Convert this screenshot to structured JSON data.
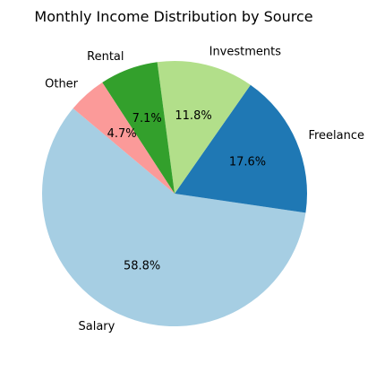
{
  "chart_data": {
    "type": "pie",
    "title": "Monthly Income Distribution by Source",
    "slices": [
      {
        "label": "Salary",
        "value": 58.8,
        "pct_label": "58.8%",
        "color": "#a6cee3"
      },
      {
        "label": "Freelance",
        "value": 17.6,
        "pct_label": "17.6%",
        "color": "#1f78b4"
      },
      {
        "label": "Investments",
        "value": 11.8,
        "pct_label": "11.8%",
        "color": "#b2df8a"
      },
      {
        "label": "Rental",
        "value": 7.1,
        "pct_label": "7.1%",
        "color": "#33a02c"
      },
      {
        "label": "Other",
        "value": 4.7,
        "pct_label": "4.7%",
        "color": "#fb9a99"
      }
    ],
    "start_angle_deg": 140,
    "direction": "counterclockwise",
    "legend": "none"
  }
}
